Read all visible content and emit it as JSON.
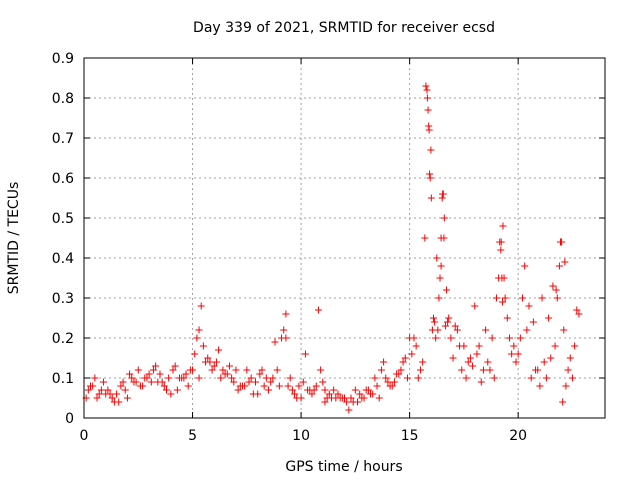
{
  "chart_data": {
    "type": "scatter",
    "title": "Day 339 of 2021, SRMTID for receiver ecsd",
    "xlabel": "GPS time / hours",
    "ylabel": "SRMTID / TECUs",
    "xlim": [
      0,
      24
    ],
    "ylim": [
      0,
      0.9
    ],
    "xticks": [
      0,
      5,
      10,
      15,
      20
    ],
    "xtick_labels": [
      "0",
      "5",
      "10",
      "15",
      "20"
    ],
    "yticks": [
      0,
      0.1,
      0.2,
      0.3,
      0.4,
      0.5,
      0.6,
      0.7,
      0.8,
      0.9
    ],
    "ytick_labels": [
      "0",
      "0.1",
      "0.2",
      "0.3",
      "0.4",
      "0.5",
      "0.6",
      "0.7",
      "0.8",
      "0.9"
    ],
    "grid": true,
    "marker": "+",
    "color": "#ff0000",
    "series": [
      {
        "name": "SRMTID",
        "x": [
          0.1,
          0.3,
          0.5,
          0.7,
          0.9,
          1.1,
          1.3,
          1.5,
          1.7,
          1.9,
          2.1,
          2.3,
          2.5,
          2.7,
          2.9,
          3.1,
          3.3,
          3.5,
          3.7,
          3.9,
          4.1,
          4.3,
          4.5,
          4.7,
          4.9,
          5.1,
          5.3,
          5.5,
          5.7,
          5.9,
          6.1,
          6.3,
          6.5,
          6.7,
          6.9,
          7.1,
          7.3,
          7.5,
          7.7,
          7.9,
          8.1,
          8.3,
          8.5,
          8.7,
          8.9,
          9.1,
          9.3,
          9.5,
          9.7,
          9.9,
          10.1,
          10.3,
          10.5,
          10.7,
          10.9,
          11.1,
          11.3,
          11.5,
          11.7,
          11.9,
          12.1,
          12.3,
          12.5,
          12.7,
          12.9,
          13.1,
          13.3,
          13.5,
          13.7,
          13.9,
          14.1,
          14.3,
          14.5,
          14.7,
          14.9,
          15.1,
          15.3,
          15.5,
          15.7,
          15.8,
          15.85,
          15.9,
          15.95,
          16.0,
          16.1,
          16.2,
          16.3,
          16.4,
          16.5,
          16.6,
          16.7,
          16.8,
          16.9,
          17.0,
          17.2,
          17.4,
          17.6,
          17.8,
          18.0,
          18.2,
          18.4,
          18.6,
          18.8,
          19.0,
          19.1,
          19.2,
          19.3,
          19.4,
          19.5,
          19.6,
          19.8,
          20.0,
          20.2,
          20.4,
          20.6,
          20.8,
          21.0,
          21.2,
          21.4,
          21.6,
          21.8,
          21.9,
          22.0,
          22.1,
          22.2,
          22.4,
          22.6,
          22.8,
          0.2,
          0.6,
          1.0,
          1.4,
          1.8,
          2.2,
          2.6,
          3.0,
          3.4,
          3.8,
          4.2,
          4.6,
          5.0,
          5.2,
          5.4,
          5.6,
          6.0,
          6.4,
          6.8,
          7.2,
          7.6,
          8.0,
          8.4,
          8.8,
          9.2,
          9.4,
          9.6,
          10.0,
          10.4,
          10.8,
          11.0,
          11.2,
          11.6,
          12.0,
          12.4,
          12.8,
          13.2,
          13.6,
          14.0,
          14.4,
          14.8,
          15.2,
          15.6,
          16.05,
          16.15,
          16.35,
          16.45,
          16.55,
          16.75,
          17.1,
          17.5,
          17.9,
          18.3,
          18.7,
          19.15,
          19.25,
          19.7,
          20.1,
          20.5,
          20.9,
          21.3,
          21.7,
          22.05,
          22.3,
          22.7,
          0.4,
          0.8,
          1.2,
          1.6,
          2.0,
          2.4,
          2.8,
          3.2,
          3.6,
          4.0,
          4.4,
          4.8,
          5.3,
          5.8,
          6.2,
          6.6,
          7.0,
          7.4,
          7.8,
          8.2,
          8.6,
          9.0,
          9.3,
          9.8,
          10.2,
          10.6,
          11.1,
          11.4,
          11.8,
          12.2,
          12.6,
          13.0,
          13.4,
          13.8,
          14.2,
          14.6,
          15.0,
          15.4,
          15.75,
          15.82,
          15.88,
          15.92,
          15.98,
          16.25,
          16.45,
          16.52,
          16.58,
          16.65,
          17.3,
          17.7,
          18.1,
          18.5,
          18.9,
          19.22,
          19.28,
          19.35,
          19.9,
          20.3,
          20.7,
          21.1,
          21.5,
          21.75,
          21.95,
          22.15,
          22.5
        ],
        "y": [
          0.05,
          0.08,
          0.1,
          0.06,
          0.09,
          0.07,
          0.05,
          0.06,
          0.08,
          0.07,
          0.11,
          0.09,
          0.12,
          0.08,
          0.1,
          0.09,
          0.13,
          0.11,
          0.08,
          0.1,
          0.12,
          0.07,
          0.1,
          0.11,
          0.12,
          0.16,
          0.22,
          0.18,
          0.15,
          0.12,
          0.14,
          0.1,
          0.11,
          0.13,
          0.09,
          0.07,
          0.08,
          0.12,
          0.1,
          0.09,
          0.11,
          0.08,
          0.07,
          0.1,
          0.12,
          0.2,
          0.26,
          0.1,
          0.06,
          0.08,
          0.09,
          0.07,
          0.06,
          0.08,
          0.12,
          0.07,
          0.06,
          0.07,
          0.06,
          0.05,
          0.04,
          0.05,
          0.07,
          0.06,
          0.05,
          0.07,
          0.06,
          0.08,
          0.12,
          0.1,
          0.08,
          0.09,
          0.11,
          0.14,
          0.1,
          0.16,
          0.18,
          0.12,
          0.45,
          0.82,
          0.77,
          0.72,
          0.6,
          0.55,
          0.25,
          0.2,
          0.22,
          0.35,
          0.55,
          0.5,
          0.32,
          0.25,
          0.2,
          0.15,
          0.22,
          0.12,
          0.1,
          0.15,
          0.28,
          0.18,
          0.12,
          0.14,
          0.2,
          0.3,
          0.35,
          0.42,
          0.48,
          0.3,
          0.25,
          0.2,
          0.18,
          0.16,
          0.3,
          0.22,
          0.1,
          0.12,
          0.08,
          0.14,
          0.25,
          0.33,
          0.3,
          0.38,
          0.44,
          0.22,
          0.08,
          0.15,
          0.18,
          0.26,
          0.07,
          0.05,
          0.06,
          0.04,
          0.09,
          0.1,
          0.08,
          0.11,
          0.09,
          0.07,
          0.13,
          0.1,
          0.12,
          0.2,
          0.28,
          0.14,
          0.13,
          0.12,
          0.1,
          0.08,
          0.09,
          0.06,
          0.1,
          0.19,
          0.22,
          0.08,
          0.07,
          0.05,
          0.07,
          0.27,
          0.09,
          0.05,
          0.05,
          0.05,
          0.04,
          0.05,
          0.06,
          0.05,
          0.09,
          0.11,
          0.15,
          0.2,
          0.14,
          0.22,
          0.24,
          0.3,
          0.45,
          0.56,
          0.24,
          0.23,
          0.18,
          0.13,
          0.09,
          0.12,
          0.44,
          0.35,
          0.16,
          0.2,
          0.28,
          0.12,
          0.1,
          0.18,
          0.04,
          0.12,
          0.27,
          0.08,
          0.07,
          0.06,
          0.04,
          0.05,
          0.09,
          0.1,
          0.12,
          0.09,
          0.06,
          0.1,
          0.08,
          0.1,
          0.14,
          0.17,
          0.11,
          0.12,
          0.08,
          0.06,
          0.12,
          0.09,
          0.08,
          0.2,
          0.05,
          0.16,
          0.07,
          0.04,
          0.05,
          0.05,
          0.02,
          0.04,
          0.07,
          0.1,
          0.14,
          0.08,
          0.12,
          0.2,
          0.1,
          0.83,
          0.8,
          0.73,
          0.61,
          0.67,
          0.4,
          0.38,
          0.56,
          0.45,
          0.23,
          0.18,
          0.14,
          0.16,
          0.22,
          0.1,
          0.44,
          0.29,
          0.35,
          0.14,
          0.38,
          0.24,
          0.3,
          0.15,
          0.32,
          0.44,
          0.39,
          0.1
        ]
      }
    ]
  }
}
